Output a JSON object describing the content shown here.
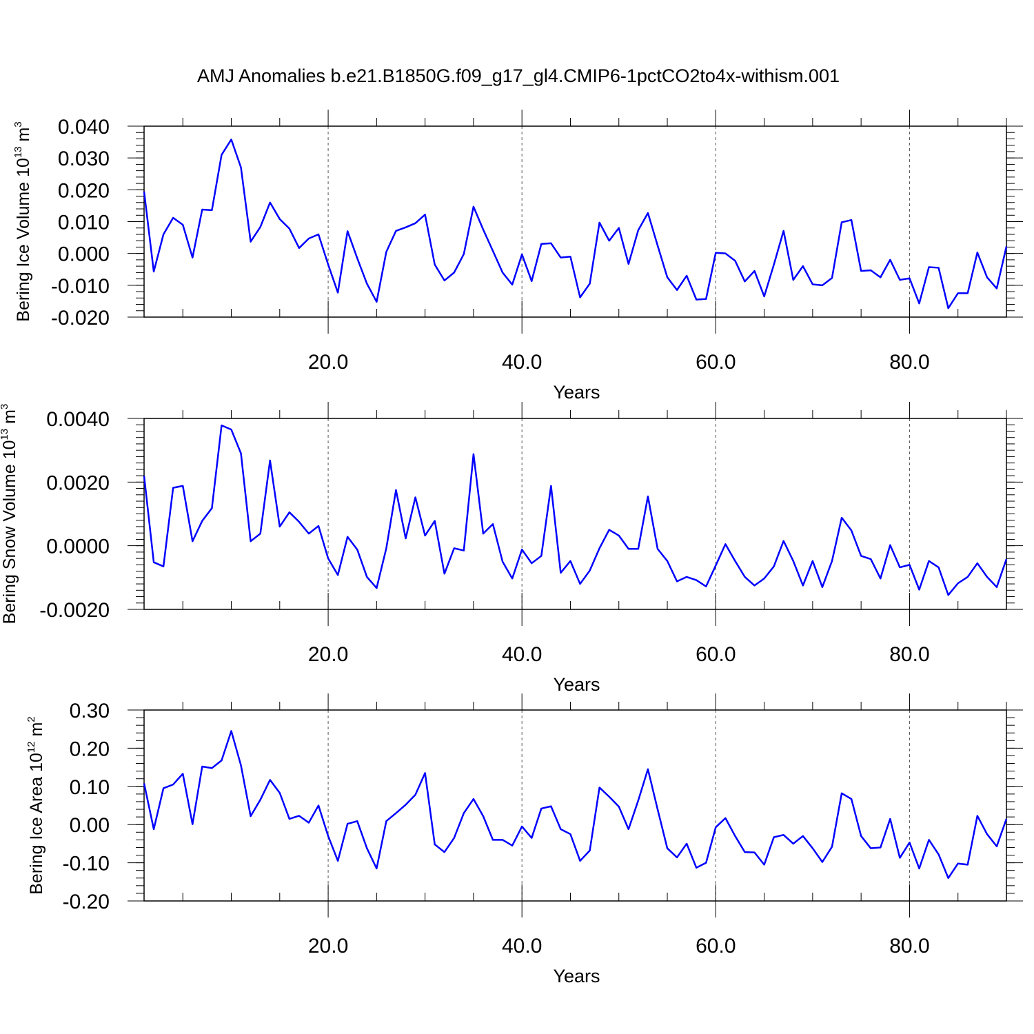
{
  "title": "AMJ Anomalies b.e21.B1850G.f09_g17_gl4.CMIP6-1pctCO2to4x-withism.001",
  "line_color": "#0000ff",
  "chart_data": [
    {
      "type": "line",
      "ylabel_text": "Bering Ice Volume 10",
      "ylabel_exp": "13",
      "ylabel_unit": " m",
      "ylabel_unit_exp": "3",
      "xlabel": "Years",
      "xlim": [
        1,
        90
      ],
      "ylim": [
        -0.02,
        0.04
      ],
      "x_ticks": [
        20,
        40,
        60,
        80
      ],
      "x_tick_labels": [
        "20.0",
        "40.0",
        "60.0",
        "80.0"
      ],
      "y_ticks": [
        -0.02,
        -0.01,
        0.0,
        0.01,
        0.02,
        0.03,
        0.04
      ],
      "y_tick_labels": [
        "-0.020",
        "-0.010",
        "0.000",
        "0.010",
        "0.020",
        "0.030",
        "0.040"
      ],
      "y_minor_step": 0.002,
      "series": [
        {
          "name": "Bering Ice Volume",
          "x_start": 1,
          "values": [
            0.0195,
            -0.0057,
            0.006,
            0.0112,
            0.009,
            -0.0013,
            0.0138,
            0.0136,
            0.031,
            0.0358,
            0.027,
            0.0037,
            0.0083,
            0.016,
            0.0108,
            0.0078,
            0.0017,
            0.0047,
            0.006,
            -0.0035,
            -0.0123,
            0.007,
            -0.0015,
            -0.0095,
            -0.0152,
            0.0005,
            0.0071,
            0.0082,
            0.0095,
            0.0122,
            -0.0035,
            -0.0085,
            -0.006,
            -0.0002,
            0.0147,
            0.0075,
            0.0008,
            -0.006,
            -0.0098,
            -0.0003,
            -0.0087,
            0.003,
            0.0032,
            -0.0013,
            -0.001,
            -0.0138,
            -0.0095,
            0.0097,
            0.004,
            0.008,
            -0.0033,
            0.0073,
            0.0127,
            0.0025,
            -0.0075,
            -0.0115,
            -0.007,
            -0.0145,
            -0.0143,
            0.0002,
            0.0,
            -0.0023,
            -0.0088,
            -0.0055,
            -0.0135,
            -0.0035,
            0.0071,
            -0.0083,
            -0.004,
            -0.0097,
            -0.01,
            -0.0077,
            0.0098,
            0.0105,
            -0.0055,
            -0.0053,
            -0.0075,
            -0.002,
            -0.0083,
            -0.0078,
            -0.0157,
            -0.0043,
            -0.0045,
            -0.0172,
            -0.0125,
            -0.0125,
            0.0003,
            -0.0075,
            -0.011,
            0.0022
          ]
        }
      ]
    },
    {
      "type": "line",
      "ylabel_text": "Bering Snow Volume 10",
      "ylabel_exp": "13",
      "ylabel_unit": " m",
      "ylabel_unit_exp": "3",
      "xlabel": "Years",
      "xlim": [
        1,
        90
      ],
      "ylim": [
        -0.002,
        0.004
      ],
      "x_ticks": [
        20,
        40,
        60,
        80
      ],
      "x_tick_labels": [
        "20.0",
        "40.0",
        "60.0",
        "80.0"
      ],
      "y_ticks": [
        -0.002,
        0.0,
        0.002,
        0.004
      ],
      "y_tick_labels": [
        "-0.0020",
        "0.0000",
        "0.0020",
        "0.0040"
      ],
      "y_minor_step": 0.0002,
      "series": [
        {
          "name": "Bering Snow Volume",
          "x_start": 1,
          "values": [
            0.0022,
            -0.00052,
            -0.00065,
            0.00182,
            0.00188,
            0.00014,
            0.00078,
            0.00118,
            0.00378,
            0.00365,
            0.0029,
            0.00014,
            0.00038,
            0.00268,
            0.0006,
            0.00105,
            0.00075,
            0.00038,
            0.00062,
            -0.0004,
            -0.00092,
            0.00028,
            -0.00012,
            -0.00098,
            -0.00133,
            -8e-05,
            0.00175,
            0.00023,
            0.00152,
            0.00032,
            0.00078,
            -0.00088,
            -8e-05,
            -0.00015,
            0.00288,
            0.00038,
            0.00068,
            -0.0005,
            -0.00103,
            -0.00012,
            -0.00055,
            -0.00032,
            0.00188,
            -0.00085,
            -0.00048,
            -0.0012,
            -0.00078,
            -8e-05,
            0.0005,
            0.00032,
            -0.0001,
            -0.0001,
            0.00155,
            -0.0001,
            -0.00048,
            -0.00112,
            -0.00098,
            -0.00108,
            -0.00128,
            -0.00062,
            5e-05,
            -0.00048,
            -0.00098,
            -0.00125,
            -0.00103,
            -0.00065,
            0.00015,
            -0.00048,
            -0.00125,
            -0.00048,
            -0.0013,
            -0.00048,
            0.00088,
            0.00048,
            -0.00032,
            -0.00042,
            -0.00103,
            2e-05,
            -0.00068,
            -0.0006,
            -0.00138,
            -0.00048,
            -0.00068,
            -0.00155,
            -0.00118,
            -0.00098,
            -0.00055,
            -0.00098,
            -0.0013,
            -0.00042
          ]
        }
      ]
    },
    {
      "type": "line",
      "ylabel_text": "Bering Ice Area 10",
      "ylabel_exp": "12",
      "ylabel_unit": " m",
      "ylabel_unit_exp": "2",
      "xlabel": "Years",
      "xlim": [
        1,
        90
      ],
      "ylim": [
        -0.2,
        0.3
      ],
      "x_ticks": [
        20,
        40,
        60,
        80
      ],
      "x_tick_labels": [
        "20.0",
        "40.0",
        "60.0",
        "80.0"
      ],
      "y_ticks": [
        -0.2,
        -0.1,
        0.0,
        0.1,
        0.2,
        0.3
      ],
      "y_tick_labels": [
        "-0.20",
        "-0.10",
        "0.00",
        "0.10",
        "0.20",
        "0.30"
      ],
      "y_minor_step": 0.02,
      "series": [
        {
          "name": "Bering Ice Area",
          "x_start": 1,
          "values": [
            0.108,
            -0.012,
            0.095,
            0.105,
            0.133,
            0.001,
            0.152,
            0.148,
            0.168,
            0.245,
            0.155,
            0.022,
            0.065,
            0.117,
            0.083,
            0.015,
            0.023,
            0.005,
            0.05,
            -0.03,
            -0.095,
            0.002,
            0.009,
            -0.062,
            -0.115,
            0.009,
            0.03,
            0.052,
            0.078,
            0.135,
            -0.052,
            -0.072,
            -0.035,
            0.03,
            0.067,
            0.022,
            -0.04,
            -0.04,
            -0.055,
            -0.005,
            -0.035,
            0.042,
            0.048,
            -0.012,
            -0.025,
            -0.095,
            -0.068,
            0.097,
            0.073,
            0.047,
            -0.012,
            0.063,
            0.145,
            0.04,
            -0.062,
            -0.086,
            -0.05,
            -0.113,
            -0.1,
            -0.007,
            0.017,
            -0.03,
            -0.072,
            -0.073,
            -0.105,
            -0.033,
            -0.027,
            -0.05,
            -0.03,
            -0.062,
            -0.098,
            -0.058,
            0.082,
            0.067,
            -0.03,
            -0.062,
            -0.06,
            0.015,
            -0.087,
            -0.047,
            -0.115,
            -0.04,
            -0.078,
            -0.14,
            -0.102,
            -0.105,
            0.023,
            -0.025,
            -0.057,
            0.015
          ]
        }
      ]
    }
  ]
}
